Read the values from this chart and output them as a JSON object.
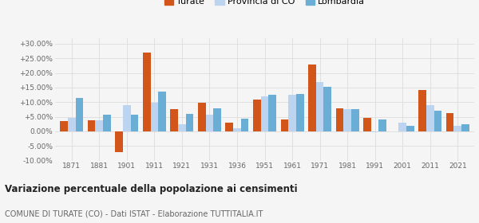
{
  "years": [
    1871,
    1881,
    1901,
    1911,
    1921,
    1931,
    1936,
    1951,
    1961,
    1971,
    1981,
    1991,
    2001,
    2011,
    2021
  ],
  "turate": [
    3.5,
    3.8,
    -7.0,
    27.0,
    7.5,
    9.8,
    3.0,
    10.8,
    4.0,
    23.0,
    8.0,
    4.5,
    0.0,
    14.2,
    6.3
  ],
  "provincia": [
    4.5,
    3.8,
    9.0,
    9.8,
    2.5,
    5.8,
    1.0,
    12.0,
    12.5,
    17.0,
    7.5,
    -0.2,
    3.0,
    9.0,
    1.8
  ],
  "lombardia": [
    11.5,
    5.8,
    5.8,
    13.5,
    6.0,
    7.8,
    4.3,
    12.5,
    12.8,
    15.3,
    7.5,
    4.0,
    2.0,
    7.0,
    2.5
  ],
  "color_turate": "#d2561a",
  "color_provincia": "#bdd4f0",
  "color_lombardia": "#6aaed6",
  "ylim": [
    -10,
    32
  ],
  "yticks": [
    -10,
    -5,
    0,
    5,
    10,
    15,
    20,
    25,
    30
  ],
  "title": "Variazione percentuale della popolazione ai censimenti",
  "subtitle": "COMUNE DI TURATE (CO) - Dati ISTAT - Elaborazione TUTTITALIA.IT",
  "legend_labels": [
    "Turate",
    "Provincia di CO",
    "Lombardia"
  ],
  "background_color": "#f5f5f5",
  "grid_color": "#dddddd"
}
